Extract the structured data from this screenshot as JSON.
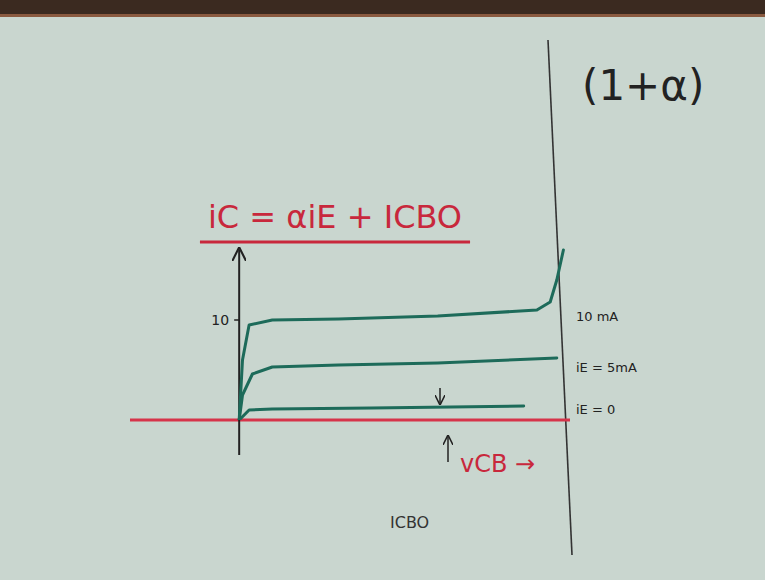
{
  "chart_data": {
    "type": "line",
    "title": "iC = αiE + ICBO",
    "x_label": "vCB →",
    "annotations": [
      "(1+α)",
      "ICBO"
    ],
    "xlim": [
      -3.3,
      10
    ],
    "ylim": [
      0,
      17
    ],
    "yticks": [
      10
    ],
    "tick_labels": "y",
    "series": [
      {
        "name": "10 mA",
        "color": "#1d6b5a",
        "x": [
          0,
          0.1,
          0.3,
          1,
          3,
          6,
          9,
          9.4,
          9.6,
          9.8
        ],
        "values": [
          0,
          6,
          9.5,
          10,
          10.1,
          10.4,
          11,
          11.8,
          14,
          17
        ]
      },
      {
        "name": "iE = 5mA",
        "color": "#1d6b5a",
        "x": [
          0,
          0.1,
          0.4,
          1,
          3,
          6,
          9.6
        ],
        "values": [
          0,
          2.5,
          4.6,
          5.3,
          5.5,
          5.7,
          6.2
        ]
      },
      {
        "name": "iE = 0",
        "color": "#1d6b5a",
        "x": [
          0,
          0.3,
          1,
          4,
          8.6
        ],
        "values": [
          0,
          1.0,
          1.1,
          1.2,
          1.4
        ]
      }
    ]
  }
}
